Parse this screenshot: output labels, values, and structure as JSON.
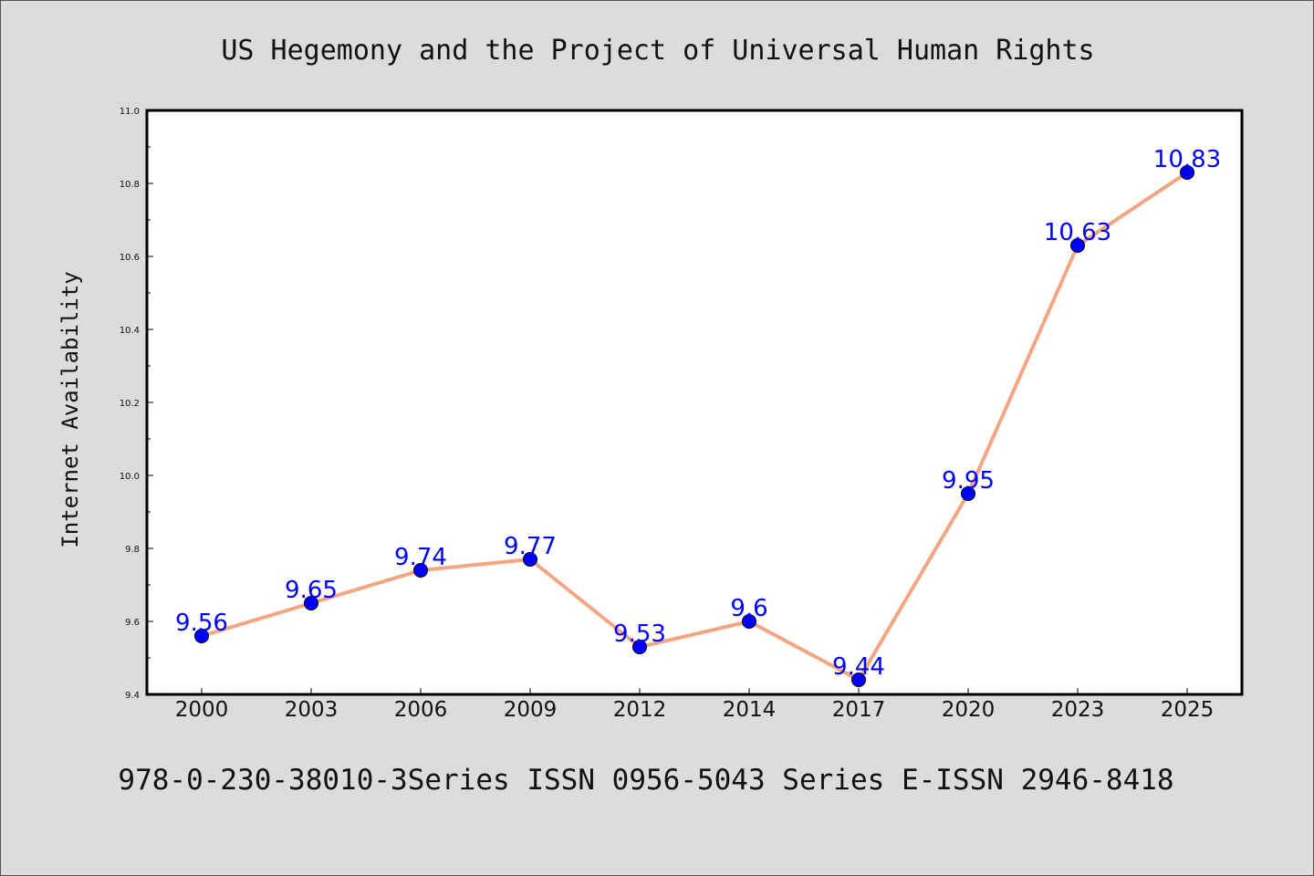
{
  "chart_data": {
    "type": "line",
    "title": "US Hegemony and the Project of Universal Human Rights",
    "xlabel": "",
    "ylabel": "Internet Availability",
    "categories": [
      "2000",
      "2003",
      "2006",
      "2009",
      "2012",
      "2014",
      "2017",
      "2020",
      "2023",
      "2025"
    ],
    "series": [
      {
        "values": [
          9.56,
          9.65,
          9.74,
          9.77,
          9.53,
          9.6,
          9.44,
          9.95,
          10.63,
          10.83
        ],
        "labels": [
          "9.56",
          "9.65",
          "9.74",
          "9.77",
          "9.53",
          "9.6",
          "9.44",
          "9.95",
          "10.63",
          "10.83"
        ]
      }
    ],
    "ylim": [
      9.4,
      11.0
    ],
    "yticks": [
      "9.4",
      "9.6",
      "9.8",
      "10.0",
      "10.2",
      "10.4",
      "10.6",
      "10.8",
      "11.0"
    ],
    "grid": false,
    "legend": "none",
    "colors": {
      "line": "#f4a582",
      "marker": "#0000ff",
      "label": "#0000ff",
      "background": "#dcdcdc",
      "plot_background": "#ffffff"
    }
  },
  "footer": {
    "text": "978-0-230-38010-3Series ISSN 0956-5043 Series E-ISSN 2946-8418"
  }
}
